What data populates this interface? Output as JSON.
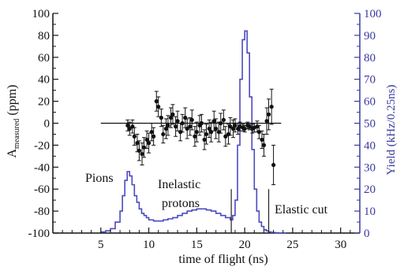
{
  "chart_data": {
    "type": "scatter",
    "title": "",
    "xlabel": "time of flight (ns)",
    "ylabel_left_main": "A",
    "ylabel_left_sub": "measured",
    "ylabel_left_unit": "(ppm)",
    "ylabel_right": "Yield (kHz/0.25ns)",
    "xlim": [
      0,
      32
    ],
    "ylim_left": [
      -100,
      100
    ],
    "ylim_right": [
      0,
      100
    ],
    "x_ticks": [
      5,
      10,
      15,
      20,
      25,
      30
    ],
    "y_left_ticks": [
      -100,
      -80,
      -60,
      -40,
      -20,
      0,
      20,
      40,
      60,
      80,
      100
    ],
    "y_right_ticks": [
      0,
      10,
      20,
      30,
      40,
      50,
      60,
      70,
      80,
      90,
      100
    ],
    "grid": false,
    "colors": {
      "asymmetry": "#111111",
      "yield": "#4a4ac0",
      "axis_right": "#3a3aa0"
    },
    "zero_line": {
      "x_start": 5.0,
      "x_end": 23.8,
      "y": 0
    },
    "series": [
      {
        "axis": "left",
        "style": "points-with-error-bars",
        "x": [
          7.8,
          8.0,
          8.3,
          8.5,
          8.8,
          9.0,
          9.3,
          9.5,
          9.8,
          10.0,
          10.3,
          10.5,
          10.8,
          11.0,
          11.3,
          11.5,
          11.8,
          12.0,
          12.3,
          12.5,
          12.8,
          13.0,
          13.3,
          13.5,
          13.8,
          14.0,
          14.3,
          14.5,
          14.8,
          15.0,
          15.3,
          15.5,
          15.8,
          16.0,
          16.3,
          16.5,
          16.8,
          17.0,
          17.3,
          17.5,
          17.8,
          18.0,
          18.3,
          18.5,
          18.8,
          19.0,
          19.3,
          19.5,
          19.8,
          20.0,
          20.3,
          20.5,
          20.8,
          21.0,
          21.3,
          21.5,
          21.8,
          22.0,
          22.3,
          22.5,
          22.8,
          23.0
        ],
        "y": [
          -2,
          -5,
          -3,
          -12,
          -18,
          -25,
          -28,
          -22,
          -15,
          -18,
          -8,
          -12,
          20,
          15,
          5,
          -10,
          -5,
          -2,
          5,
          8,
          -3,
          2,
          -8,
          0,
          5,
          -5,
          -3,
          3,
          -12,
          -8,
          -2,
          0,
          -15,
          -10,
          -5,
          -8,
          2,
          -5,
          -8,
          0,
          3,
          -12,
          -10,
          -3,
          -5,
          -2,
          -5,
          -3,
          -4,
          -5,
          -2,
          -3,
          -5,
          -4,
          -3,
          -8,
          -15,
          -20,
          2,
          8,
          15,
          -38
        ],
        "yerr": [
          5,
          6,
          6,
          8,
          8,
          9,
          10,
          9,
          8,
          9,
          8,
          8,
          9,
          9,
          8,
          8,
          9,
          9,
          9,
          9,
          9,
          9,
          8,
          8,
          9,
          9,
          8,
          9,
          9,
          9,
          9,
          8,
          9,
          9,
          8,
          9,
          9,
          9,
          9,
          9,
          9,
          9,
          9,
          8,
          8,
          6,
          5,
          4,
          3,
          3,
          3,
          3,
          4,
          4,
          5,
          6,
          8,
          10,
          12,
          14,
          16,
          18
        ]
      },
      {
        "axis": "right",
        "style": "step",
        "x": [
          5.0,
          5.5,
          6.0,
          6.5,
          7.0,
          7.25,
          7.5,
          7.75,
          8.0,
          8.25,
          8.5,
          8.75,
          9.0,
          9.25,
          9.5,
          9.75,
          10.0,
          10.5,
          11.0,
          11.5,
          12.0,
          12.5,
          13.0,
          13.5,
          14.0,
          14.5,
          15.0,
          15.5,
          16.0,
          16.5,
          17.0,
          17.5,
          18.0,
          18.5,
          18.75,
          19.0,
          19.25,
          19.5,
          19.75,
          20.0,
          20.25,
          20.5,
          20.75,
          21.0,
          21.25,
          21.5,
          21.75,
          22.0,
          22.25,
          22.5,
          22.75,
          23.0,
          23.25,
          23.5,
          24.0
        ],
        "y": [
          0.5,
          1,
          2,
          5,
          10,
          17,
          24,
          28,
          26,
          22,
          17,
          14,
          11,
          9,
          8,
          7,
          6,
          5.5,
          5.5,
          6,
          6.5,
          7,
          8,
          9,
          10,
          10.5,
          11,
          11,
          10.5,
          10,
          9,
          8,
          7,
          6,
          8,
          15,
          40,
          70,
          88,
          92,
          82,
          62,
          38,
          20,
          10,
          5,
          3,
          1.5,
          1,
          0.5,
          0.3,
          0.2,
          0.1,
          0,
          0
        ]
      }
    ],
    "cut_lines": [
      18.6,
      22.5
    ],
    "annotations": {
      "pions": "Pions",
      "inelastic_line1": "Inelastic",
      "inelastic_line2": "protons",
      "elastic": "Elastic cut"
    }
  }
}
